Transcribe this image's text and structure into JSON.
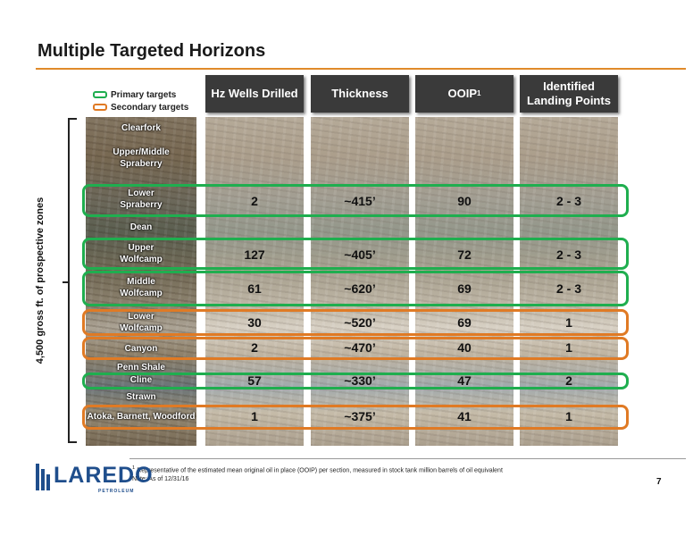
{
  "title": "Multiple Targeted Horizons",
  "legend": {
    "primary": "Primary targets",
    "secondary": "Secondary targets",
    "primary_color": "#1fae4f",
    "secondary_color": "#e07a24"
  },
  "side_label": "4,500 gross ft. of prospective zones",
  "headers": {
    "wells": "Hz Wells Drilled",
    "thickness": "Thickness",
    "ooip": "OOIP",
    "ooip_sup": "1",
    "landing_1": "Identified",
    "landing_2": "Landing Points"
  },
  "formations": {
    "clearfork": "Clearfork",
    "upper_middle_spraberry_1": "Upper/Middle",
    "upper_middle_spraberry_2": "Spraberry",
    "lower_spraberry_1": "Lower",
    "lower_spraberry_2": "Spraberry",
    "dean": "Dean",
    "upper_wolfcamp_1": "Upper",
    "upper_wolfcamp_2": "Wolfcamp",
    "middle_wolfcamp_1": "Middle",
    "middle_wolfcamp_2": "Wolfcamp",
    "lower_wolfcamp_1": "Lower",
    "lower_wolfcamp_2": "Wolfcamp",
    "canyon": "Canyon",
    "penn_shale": "Penn Shale",
    "cline": "Cline",
    "strawn": "Strawn",
    "atoka": "Atoka, Barnett, Woodford"
  },
  "rows": {
    "lower_spraberry": {
      "wells": "2",
      "thickness": "~415’",
      "ooip": "90",
      "landing": "2 - 3",
      "target": "primary"
    },
    "upper_wolfcamp": {
      "wells": "127",
      "thickness": "~405’",
      "ooip": "72",
      "landing": "2 - 3",
      "target": "primary"
    },
    "middle_wolfcamp": {
      "wells": "61",
      "thickness": "~620’",
      "ooip": "69",
      "landing": "2 - 3",
      "target": "primary"
    },
    "lower_wolfcamp": {
      "wells": "30",
      "thickness": "~520’",
      "ooip": "69",
      "landing": "1",
      "target": "secondary"
    },
    "canyon": {
      "wells": "2",
      "thickness": "~470’",
      "ooip": "40",
      "landing": "1",
      "target": "secondary"
    },
    "cline": {
      "wells": "57",
      "thickness": "~330’",
      "ooip": "47",
      "landing": "2",
      "target": "primary"
    },
    "atoka": {
      "wells": "1",
      "thickness": "~375’",
      "ooip": "41",
      "landing": "1",
      "target": "secondary"
    }
  },
  "footnote": {
    "sup": "1",
    "line1": " Representative of the estimated mean original oil in place (OOIP) per section, measured in stock tank million barrels of oil equivalent",
    "line2": "Note: As of 12/31/16"
  },
  "page_number": "7",
  "logo": {
    "word": "LAREDO",
    "sub": "PETROLEUM",
    "color": "#1f4e8c"
  }
}
